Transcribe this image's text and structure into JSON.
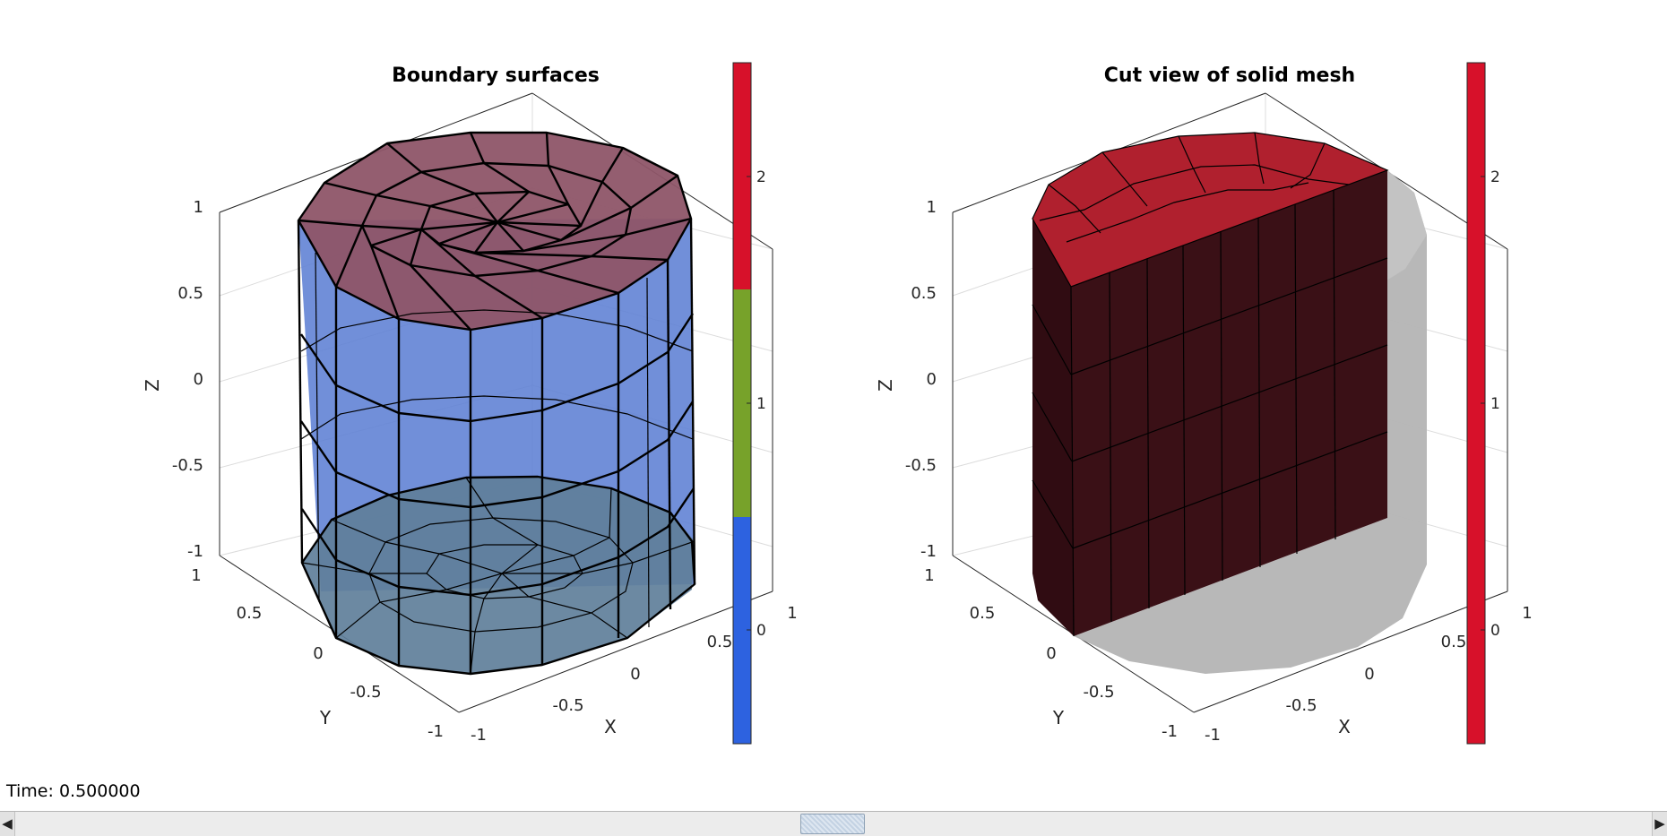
{
  "left_axes": {
    "title": "Boundary surfaces",
    "xlabel": "X",
    "ylabel": "Y",
    "zlabel": "Z",
    "z_ticks": [
      "1",
      "0.5",
      "0",
      "-0.5",
      "-1"
    ],
    "y_ticks": [
      "1",
      "0.5",
      "0",
      "-0.5",
      "-1"
    ],
    "x_ticks": [
      "-1",
      "-0.5",
      "0",
      "0.5",
      "1"
    ],
    "colors": {
      "top": "#8e5568",
      "side": "#5d7fd4",
      "bottom": "#5f7f9a"
    }
  },
  "left_colorbar": {
    "ticks": [
      "2",
      "1",
      "0"
    ],
    "segments": [
      "#d7112a",
      "#77a22a",
      "#2d62e0"
    ]
  },
  "right_axes": {
    "title": "Cut view of solid mesh",
    "xlabel": "X",
    "ylabel": "Y",
    "zlabel": "Z",
    "z_ticks": [
      "1",
      "0.5",
      "0",
      "-0.5",
      "-1"
    ],
    "y_ticks": [
      "1",
      "0.5",
      "0",
      "-0.5",
      "-1"
    ],
    "x_ticks": [
      "-1",
      "-0.5",
      "0",
      "0.5",
      "1"
    ],
    "colors": {
      "cut_face": "#3a1016",
      "top_face": "#b0202e",
      "ghost": "#b4b4b4"
    }
  },
  "right_colorbar": {
    "ticks": [
      "2",
      "1",
      "0"
    ],
    "segments": [
      "#d7112a"
    ]
  },
  "status": {
    "time_label": "Time: 0.500000"
  },
  "scrollbar": {
    "left_arrow": "◀",
    "right_arrow": "▶",
    "thumb_icon": "scroll-thumb-icon"
  }
}
